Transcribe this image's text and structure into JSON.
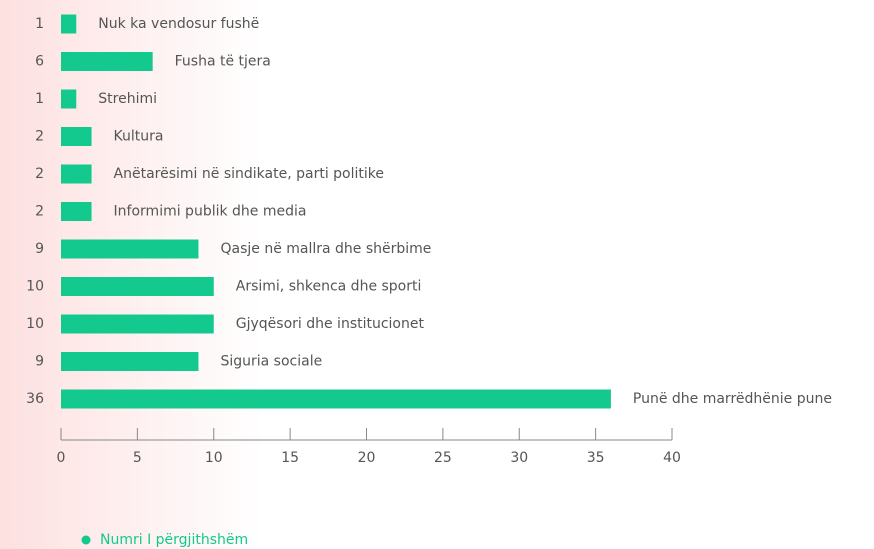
{
  "chart_data": {
    "type": "bar",
    "orientation": "horizontal",
    "categories": [
      "Nuk ka vendosur fushë",
      "Fusha të tjera",
      "Strehimi",
      "Kultura",
      "Anëtarësimi në sindikate, parti politike",
      "Informimi publik dhe media",
      "Qasje në mallra dhe shërbime",
      "Arsimi, shkenca dhe sporti",
      "Gjyqësori dhe institucionet",
      "Siguria sociale",
      "Punë dhe marrëdhënie pune"
    ],
    "series": [
      {
        "name": "Numri I përgjithshëm",
        "color": "#14c98e",
        "values": [
          1,
          6,
          1,
          2,
          2,
          2,
          9,
          10,
          10,
          9,
          36
        ]
      }
    ],
    "xlim": [
      0,
      40
    ],
    "xticks": [
      0,
      5,
      10,
      15,
      20,
      25,
      30,
      35,
      40
    ]
  }
}
